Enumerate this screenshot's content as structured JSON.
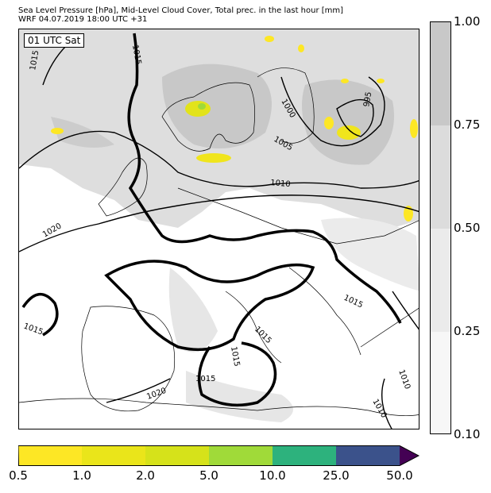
{
  "title": {
    "line1": "Sea Level Pressure [hPa], Mid-Level Cloud Cover, Total prec. in the last hour [mm]",
    "line2": "WRF 04.07.2019 18:00 UTC +31"
  },
  "valid_time_label": "01 UTC Sat",
  "isobar_labels": [
    "1015",
    "1015",
    "1015",
    "1015",
    "1015",
    "1015",
    "1015",
    "1010",
    "1010",
    "1005",
    "1000",
    "995",
    "1020",
    "1020",
    "1010"
  ],
  "cloud_cover_legend": {
    "ticks": [
      "1.00",
      "0.75",
      "0.50",
      "0.25",
      "0.10"
    ],
    "colors": [
      "#c8c8c8",
      "#dcdcdc",
      "#ebebeb",
      "#f7f7f7"
    ]
  },
  "precip_legend": {
    "ticks": [
      "0.5",
      "1.0",
      "2.0",
      "5.0",
      "10.0",
      "25.0",
      "50.0"
    ],
    "colors": [
      "#fde725",
      "#eae51a",
      "#d6e21a",
      "#a0da39",
      "#2db27d",
      "#3b528b",
      "#440154"
    ]
  }
}
